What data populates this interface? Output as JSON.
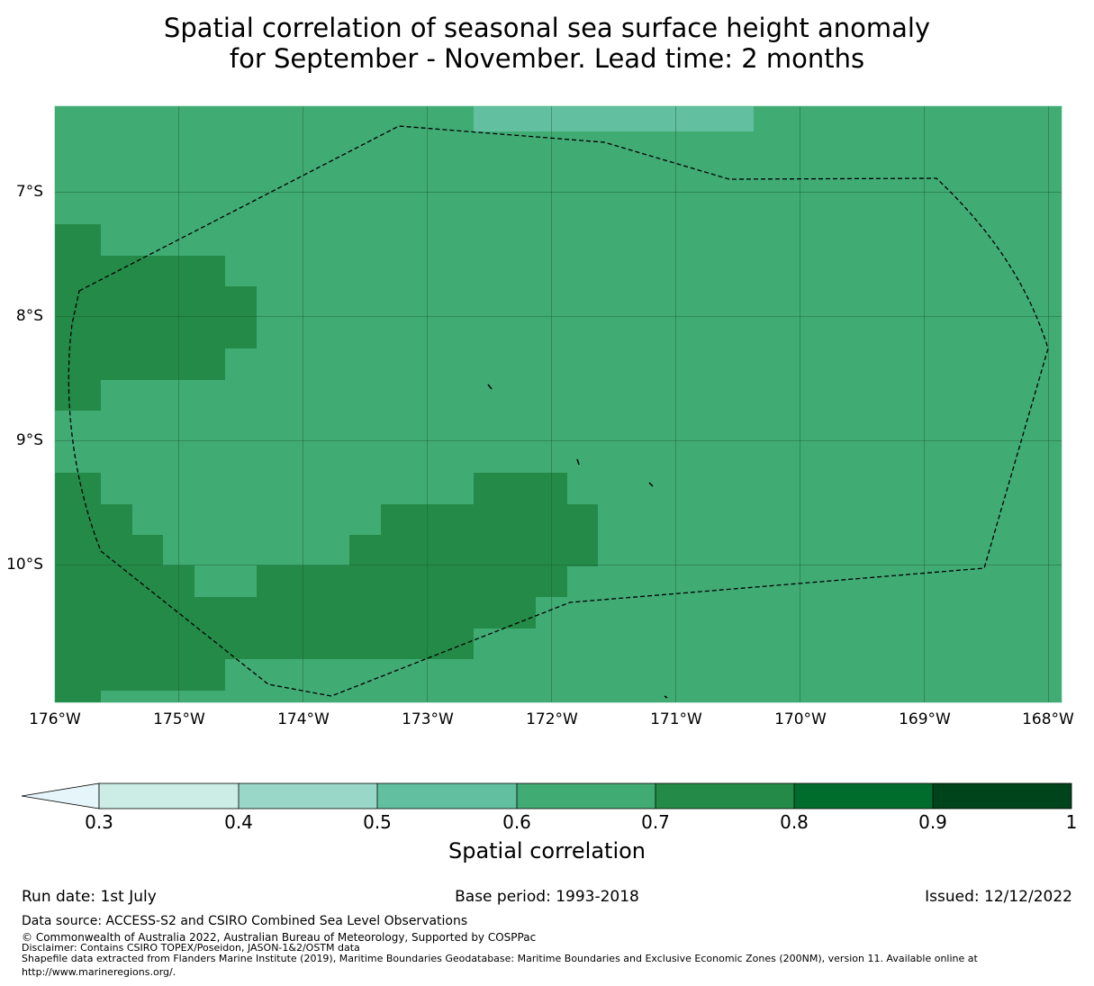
{
  "title": {
    "line1": "Spatial correlation of seasonal sea surface height anomaly",
    "line2": "for September - November. Lead time: 2 months"
  },
  "map": {
    "lat_labels": [
      "7°S",
      "8°S",
      "9°S",
      "10°S"
    ],
    "lon_labels": [
      "176°W",
      "175°W",
      "174°W",
      "173°W",
      "172°W",
      "171°W",
      "170°W",
      "169°W",
      "168°W"
    ],
    "base_class": "0.6-0.7",
    "colors": {
      "background_0.6_0.7": "#41ab74",
      "cells_0.7_0.8": "#238b47",
      "cells_0.5_0.6": "#62c0a0",
      "gridline": "#1a5a32",
      "eez_boundary": "#000000"
    }
  },
  "colorbar": {
    "label": "Spatial correlation",
    "ticks": [
      "0.3",
      "0.4",
      "0.5",
      "0.6",
      "0.7",
      "0.8",
      "0.9",
      "1"
    ],
    "colors": [
      "#e5f5f9",
      "#ccece6",
      "#99d8c9",
      "#62c0a0",
      "#41ab74",
      "#238b47",
      "#006d2c",
      "#00441b"
    ]
  },
  "meta": {
    "run_date": "Run date: 1st July",
    "base_period": "Base period: 1993-2018",
    "issued": "Issued: 12/12/2022"
  },
  "footer": {
    "data_source": "Data source: ACCESS-S2 and CSIRO Combined Sea Level Observations",
    "copyright": "© Commonwealth of Australia 2022, Australian Bureau of Meteorology, Supported by COSPPac",
    "disclaimer": "Disclaimer: Contains CSIRO TOPEX/Poseidon, JASON-1&2/OSTM data",
    "shapefile_line1": "Shapefile data extracted from Flanders Marine Institute (2019), Maritime Boundaries Geodatabase: Maritime Boundaries and Exclusive Economic Zones (200NM), version 11. Available online at",
    "shapefile_line2": "http://www.marineregions.org/."
  }
}
